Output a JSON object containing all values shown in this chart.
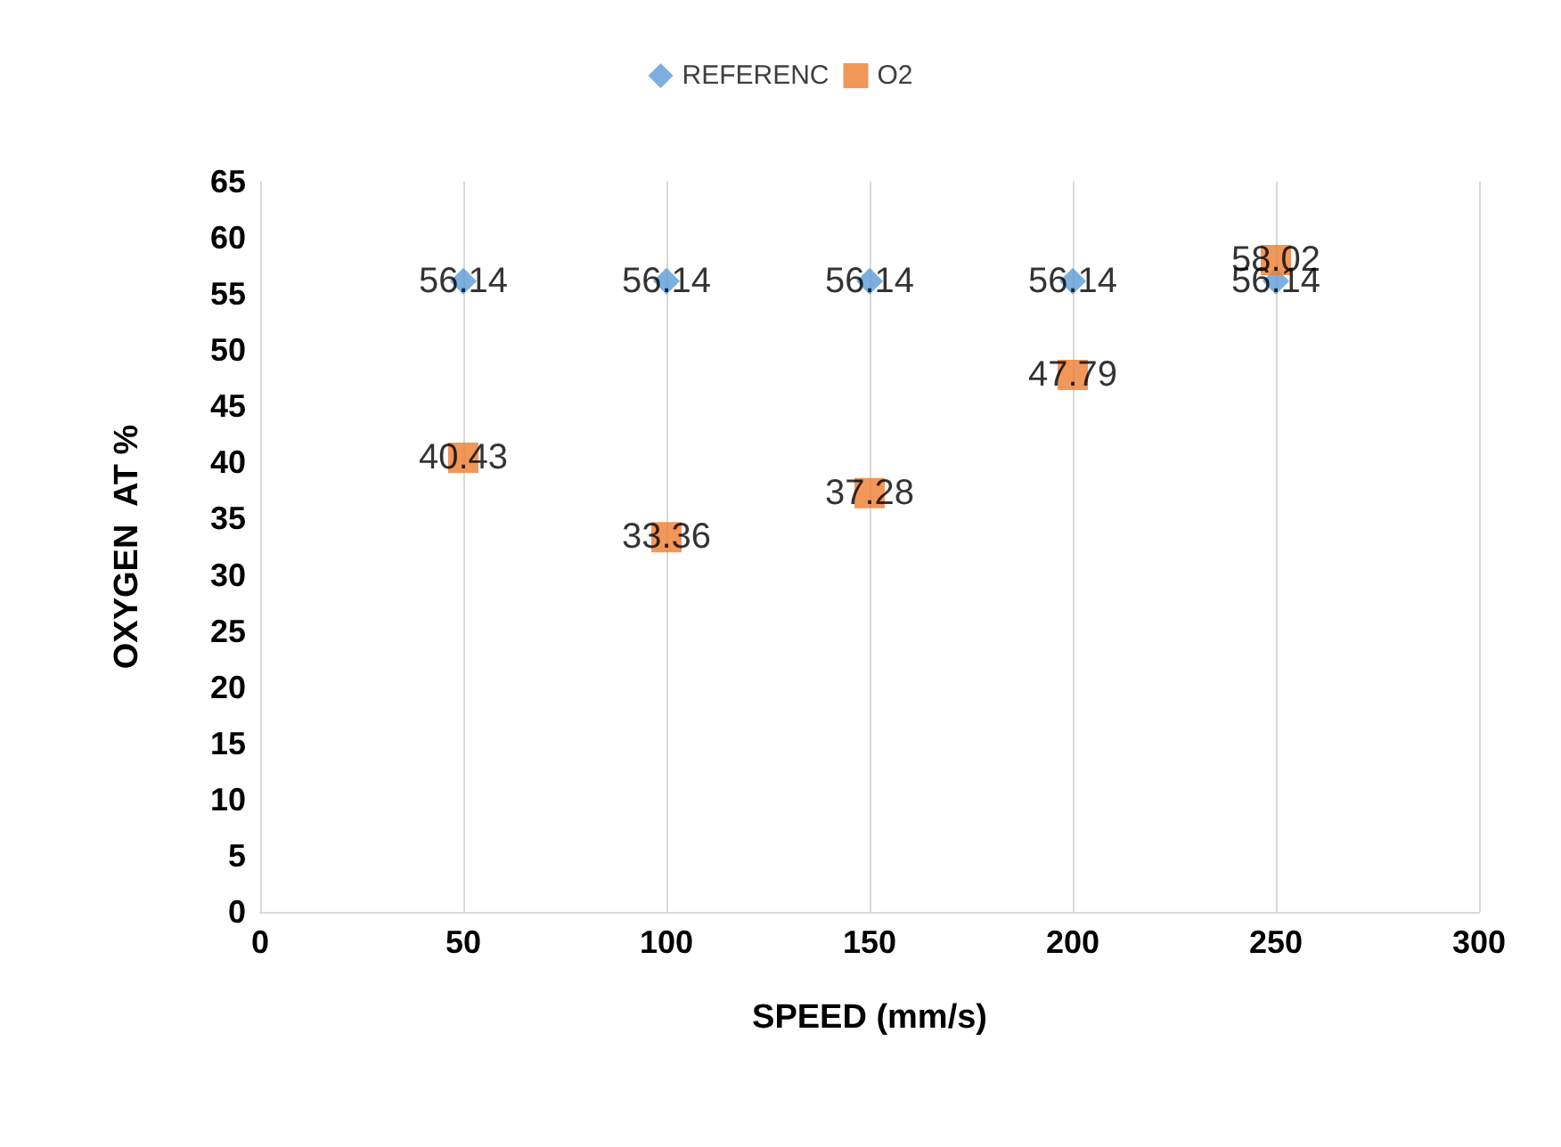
{
  "chart_data": {
    "type": "scatter",
    "xlabel": "SPEED (mm/s)",
    "ylabel": "OXYGEN  AT %",
    "x": [
      50,
      100,
      150,
      200,
      250
    ],
    "series": [
      {
        "name": "REFERENC",
        "color": "#5b9bd5",
        "marker": "diamond",
        "values": [
          56.14,
          56.14,
          56.14,
          56.14,
          56.14
        ]
      },
      {
        "name": "O2",
        "color": "#ed7d31",
        "marker": "square",
        "values": [
          40.43,
          33.36,
          37.28,
          47.79,
          58.02
        ]
      }
    ],
    "xlim": [
      0,
      300
    ],
    "xticks": [
      0,
      50,
      100,
      150,
      200,
      250,
      300
    ],
    "ylim": [
      0,
      65
    ],
    "yticks": [
      0,
      5,
      10,
      15,
      20,
      25,
      30,
      35,
      40,
      45,
      50,
      55,
      60,
      65
    ],
    "grid": "x",
    "legend": "top",
    "data_labels": true
  }
}
